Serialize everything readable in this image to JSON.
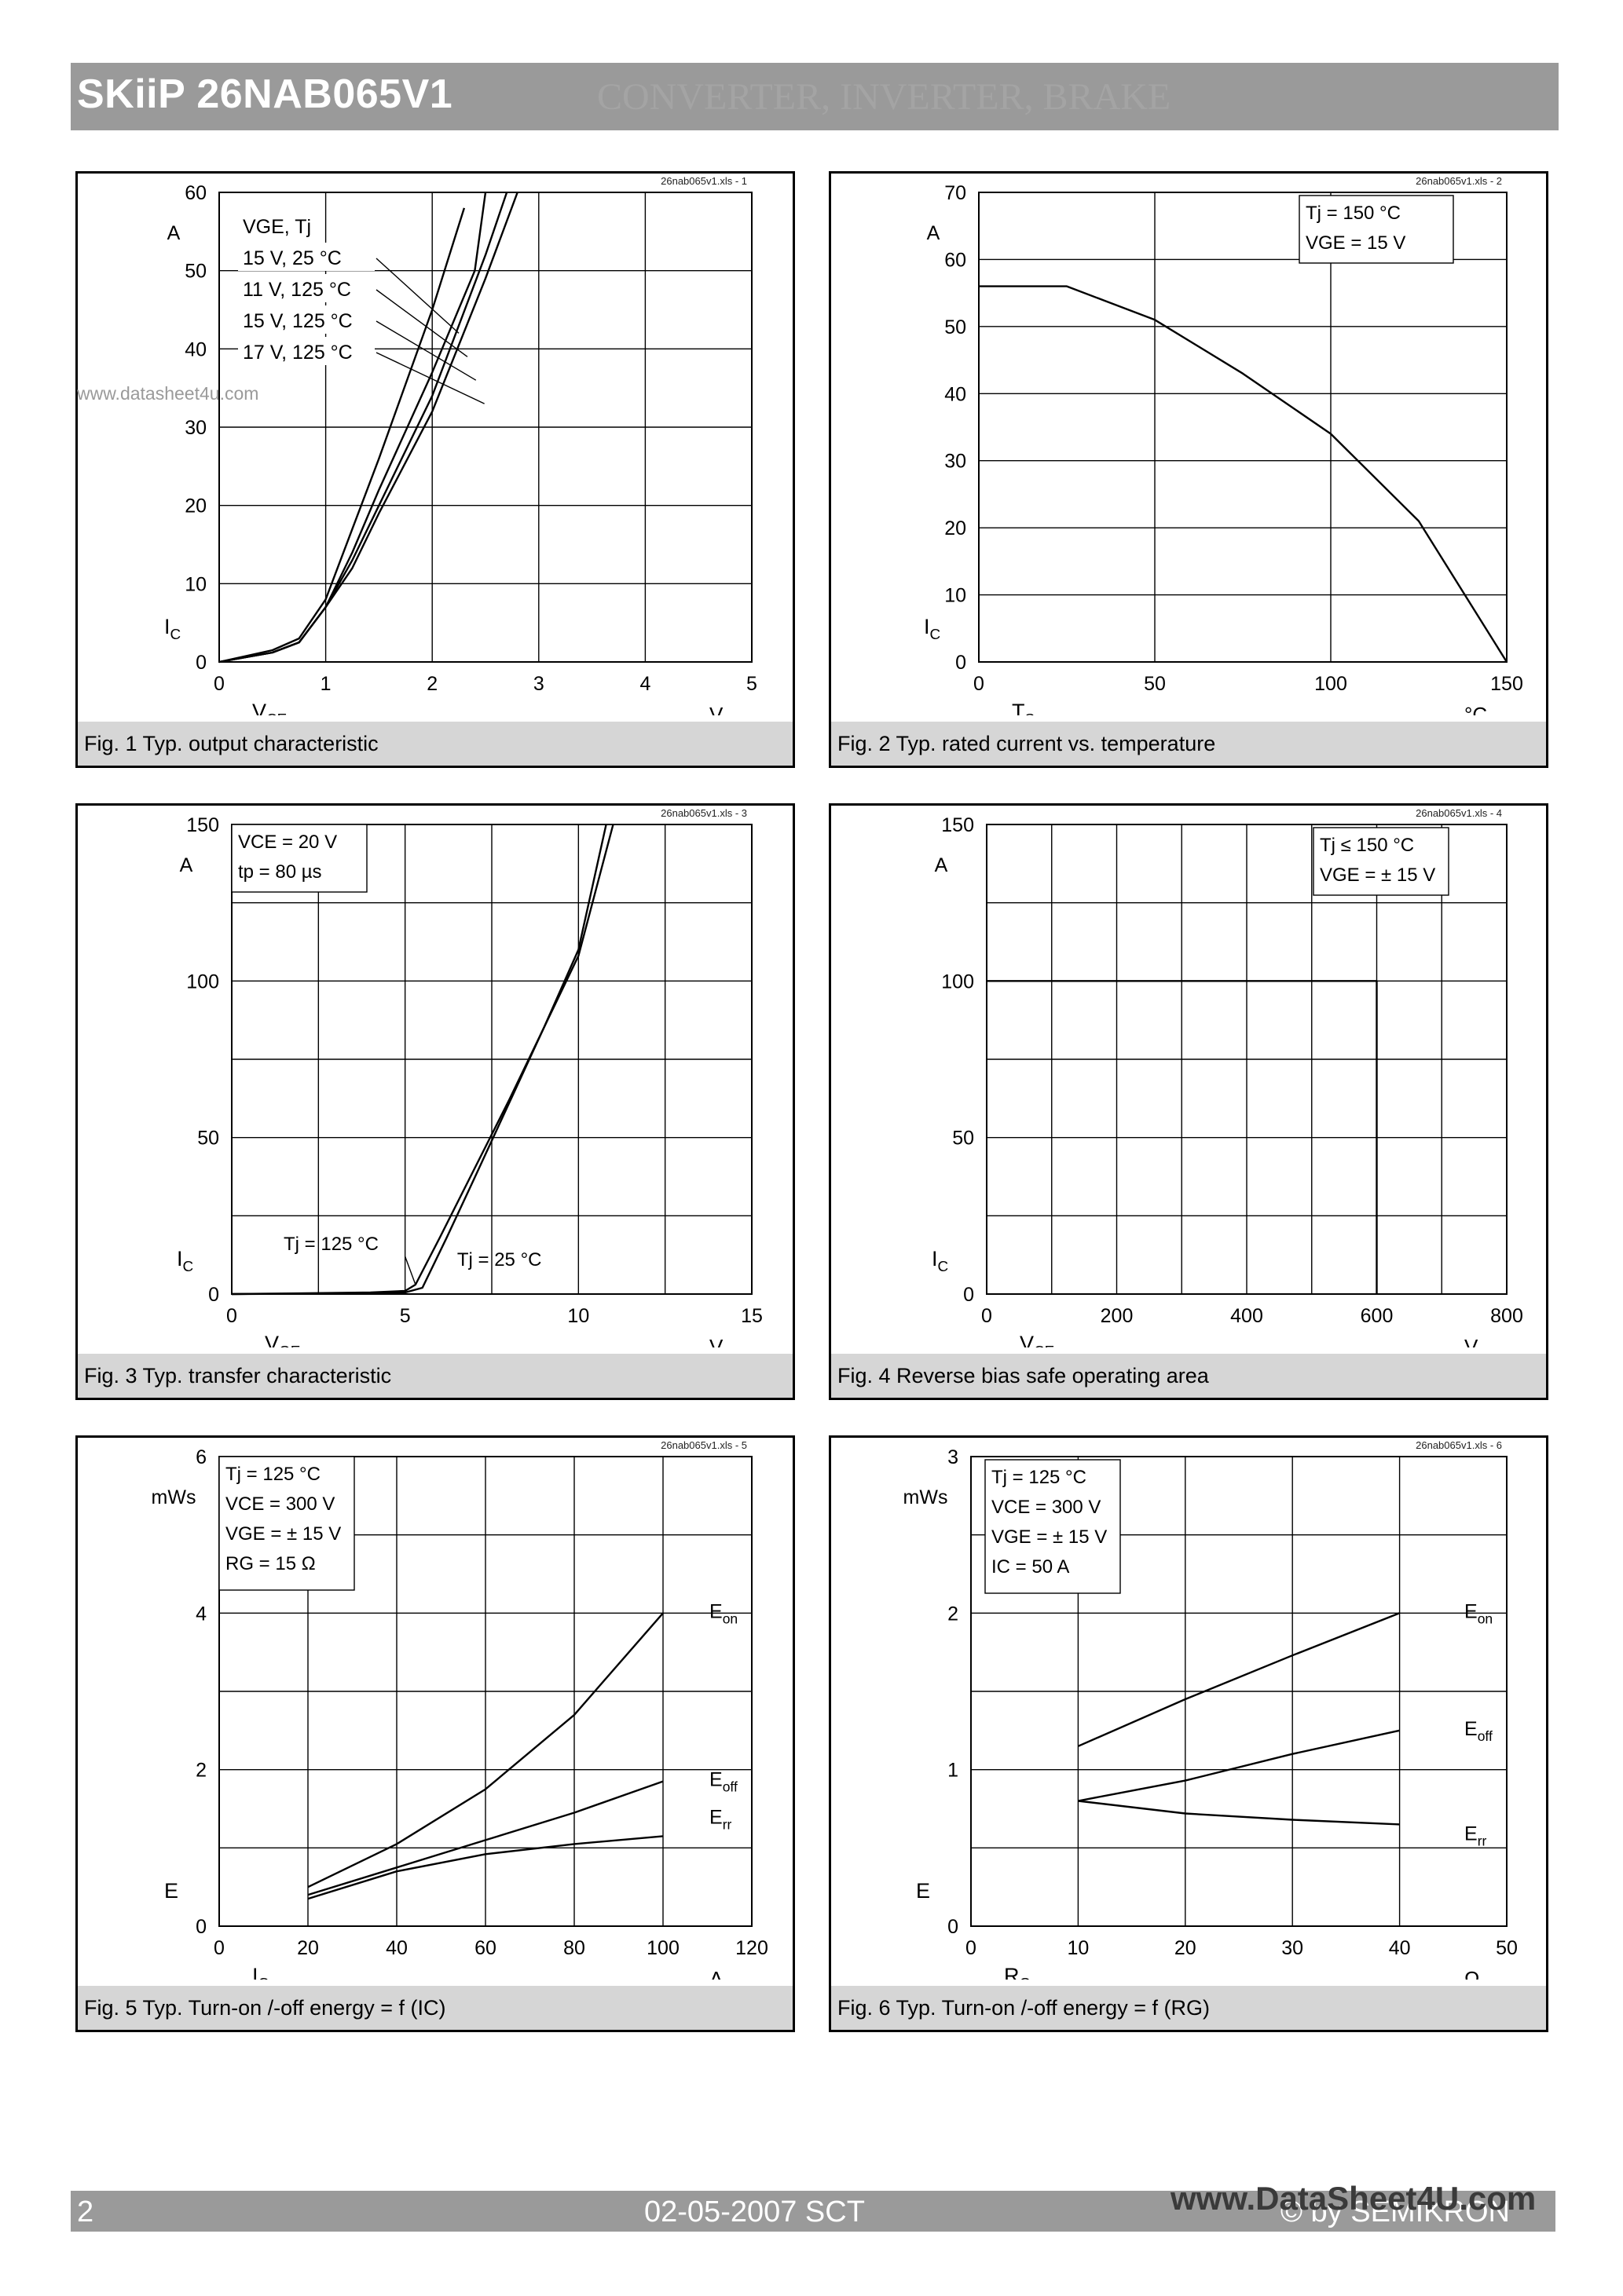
{
  "header": {
    "title": "SKiiP 26NAB065V1",
    "subtitle": "CONVERTER, INVERTER, BRAKE"
  },
  "footer": {
    "page": "2",
    "date": "02-05-2007  SCT",
    "copyright": "© by SEMIKRON"
  },
  "watermarks": [
    "www.datasheet4u.com",
    "www.DataSheet4U.com"
  ],
  "chart_data": [
    {
      "id": "fig1",
      "type": "line",
      "caption": "Fig. 1 Typ. output characteristic",
      "fileref": "26nab065v1.xls - 1",
      "xlabel": "VCE",
      "xunit": "V",
      "ylabel": "IC",
      "yunit": "A",
      "xlim": [
        0,
        5
      ],
      "ylim": [
        0,
        60
      ],
      "xticks": [
        0,
        1,
        2,
        3,
        4,
        5
      ],
      "yticks": [
        0,
        10,
        20,
        30,
        40,
        50,
        60
      ],
      "legend_header": "VGE,     Tj",
      "series": [
        {
          "name": "15 V,   25 °C",
          "x": [
            0,
            0.5,
            0.75,
            1,
            1.25,
            1.5,
            2,
            2.3
          ],
          "y": [
            0,
            1.5,
            3,
            8,
            17,
            26,
            45,
            58
          ]
        },
        {
          "name": "11 V, 125 °C",
          "x": [
            0,
            0.5,
            0.75,
            1,
            1.25,
            1.5,
            2,
            2.4,
            2.5
          ],
          "y": [
            0,
            1.2,
            2.5,
            7,
            14,
            22,
            37,
            50,
            60
          ]
        },
        {
          "name": "15 V, 125 °C",
          "x": [
            0,
            0.5,
            0.75,
            1,
            1.25,
            1.5,
            2,
            2.5,
            2.7
          ],
          "y": [
            0,
            1.2,
            2.5,
            7,
            13,
            20,
            34,
            52,
            60
          ]
        },
        {
          "name": "17 V, 125 °C",
          "x": [
            0,
            0.5,
            0.75,
            1,
            1.25,
            1.5,
            2,
            2.5,
            2.8
          ],
          "y": [
            0,
            1.2,
            2.5,
            7,
            12,
            19,
            32,
            49,
            60
          ]
        }
      ]
    },
    {
      "id": "fig2",
      "type": "line",
      "caption": "Fig. 2 Typ. rated current vs. temperature",
      "fileref": "26nab065v1.xls - 2",
      "xlabel": "TS",
      "xunit": "°C",
      "ylabel": "IC",
      "yunit": "A",
      "xlim": [
        0,
        150
      ],
      "ylim": [
        0,
        70
      ],
      "xticks": [
        0,
        50,
        100,
        150
      ],
      "yticks": [
        0,
        10,
        20,
        30,
        40,
        50,
        60,
        70
      ],
      "conditions": [
        "Tj    = 150 °C",
        "VGE = 15 V"
      ],
      "series": [
        {
          "name": "",
          "x": [
            0,
            25,
            50,
            75,
            100,
            125,
            150
          ],
          "y": [
            56,
            56,
            51,
            43,
            34,
            21,
            0
          ]
        }
      ]
    },
    {
      "id": "fig3",
      "type": "line",
      "caption": "Fig. 3 Typ. transfer characteristic",
      "fileref": "26nab065v1.xls - 3",
      "xlabel": "VGE",
      "xunit": "V",
      "ylabel": "IC",
      "yunit": "A",
      "xlim": [
        0,
        15
      ],
      "ylim": [
        0,
        150
      ],
      "xticks": [
        0,
        5,
        10,
        15
      ],
      "yticks": [
        0,
        50,
        100,
        150
      ],
      "conditions": [
        "VCE = 20 V",
        "tp     = 80 µs"
      ],
      "annotations": [
        "Tj = 125 °C",
        "Tj = 25 °C"
      ],
      "series": [
        {
          "name": "Tj = 125 °C",
          "x": [
            0,
            4,
            5,
            5.3,
            6,
            7,
            8,
            9,
            10,
            11
          ],
          "y": [
            0,
            0.5,
            1,
            3,
            18,
            40,
            62,
            85,
            108,
            150
          ]
        },
        {
          "name": "Tj = 25 °C",
          "x": [
            0,
            4,
            5,
            5.5,
            6.2,
            7,
            8,
            9,
            10,
            10.8
          ],
          "y": [
            0,
            0.2,
            0.5,
            2,
            18,
            37,
            61,
            85,
            110,
            150
          ]
        }
      ]
    },
    {
      "id": "fig4",
      "type": "line",
      "caption": "Fig. 4 Reverse bias safe operating area",
      "fileref": "26nab065v1.xls - 4",
      "xlabel": "VCE",
      "xunit": "V",
      "ylabel": "IC",
      "yunit": "A",
      "xlim": [
        0,
        800
      ],
      "ylim": [
        0,
        150
      ],
      "xticks": [
        0,
        200,
        400,
        600,
        800
      ],
      "yticks": [
        0,
        50,
        100,
        150
      ],
      "conditions": [
        "Tj     ≤ 150 °C",
        "VGE = ± 15 V"
      ],
      "series": [
        {
          "name": "",
          "x": [
            0,
            600,
            600
          ],
          "y": [
            100,
            100,
            0
          ]
        }
      ]
    },
    {
      "id": "fig5",
      "type": "line",
      "caption": "Fig. 5 Typ. Turn-on /-off energy = f (IC)",
      "fileref": "26nab065v1.xls - 5",
      "xlabel": "IC",
      "xunit": "A",
      "ylabel": "E",
      "yunit": "mWs",
      "xlim": [
        0,
        120
      ],
      "ylim": [
        0,
        6
      ],
      "xticks": [
        0,
        20,
        40,
        60,
        80,
        100,
        120
      ],
      "yticks": [
        0,
        2,
        4,
        6
      ],
      "conditions": [
        "Tj    = 125 °C",
        "VCE = 300 V",
        "VGE = ± 15 V",
        "RG   = 15 Ω"
      ],
      "series": [
        {
          "name": "Eon",
          "x": [
            20,
            40,
            60,
            80,
            100
          ],
          "y": [
            0.5,
            1.05,
            1.75,
            2.7,
            4.0
          ]
        },
        {
          "name": "Eoff",
          "x": [
            20,
            40,
            60,
            80,
            100
          ],
          "y": [
            0.4,
            0.75,
            1.1,
            1.45,
            1.85
          ]
        },
        {
          "name": "Err",
          "x": [
            20,
            40,
            60,
            80,
            100
          ],
          "y": [
            0.35,
            0.7,
            0.92,
            1.05,
            1.15
          ]
        }
      ]
    },
    {
      "id": "fig6",
      "type": "line",
      "caption": "Fig. 6 Typ. Turn-on /-off energy = f (RG)",
      "fileref": "26nab065v1.xls - 6",
      "xlabel": "RG",
      "xunit": "Ω",
      "ylabel": "E",
      "yunit": "mWs",
      "xlim": [
        0,
        50
      ],
      "ylim": [
        0,
        3
      ],
      "xticks": [
        0,
        10,
        20,
        30,
        40,
        50
      ],
      "yticks": [
        0,
        1,
        2,
        3
      ],
      "conditions": [
        "Tj    = 125 °C",
        "VCE = 300 V",
        "VGE = ± 15 V",
        "IC     = 50 A"
      ],
      "series": [
        {
          "name": "Eon",
          "x": [
            10,
            20,
            30,
            40
          ],
          "y": [
            1.15,
            1.45,
            1.73,
            2.0
          ]
        },
        {
          "name": "Eoff",
          "x": [
            10,
            20,
            30,
            40
          ],
          "y": [
            0.8,
            0.93,
            1.1,
            1.25
          ]
        },
        {
          "name": "Err",
          "x": [
            10,
            20,
            30,
            40
          ],
          "y": [
            0.8,
            0.72,
            0.68,
            0.65
          ]
        }
      ]
    }
  ]
}
